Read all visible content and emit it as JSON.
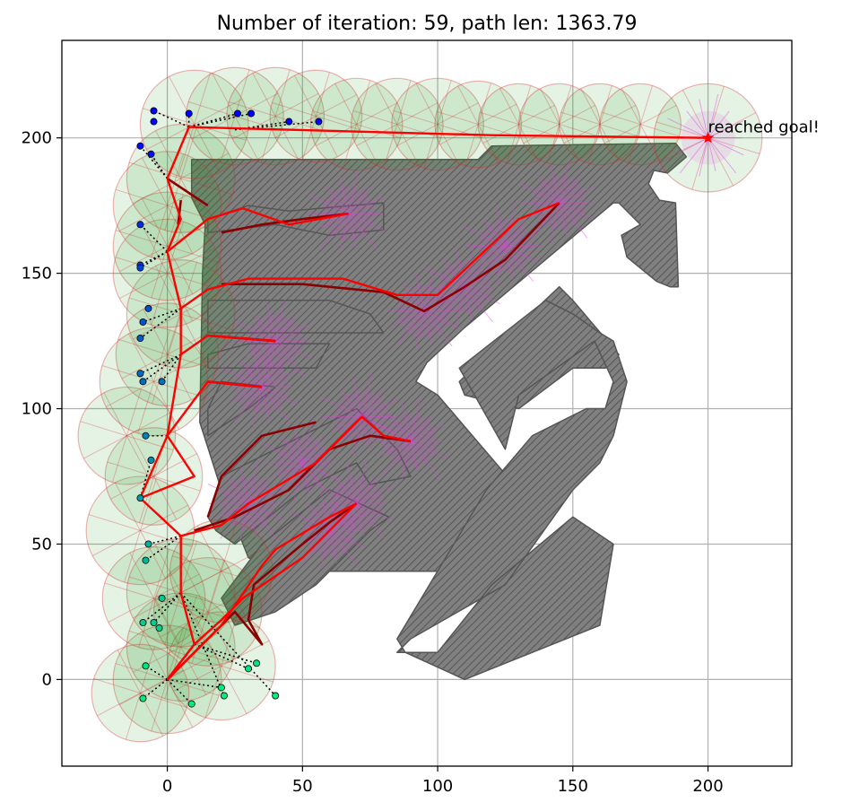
{
  "chart_data": {
    "type": "scatter",
    "title": "Number of iteration: 59, path len: 1363.79",
    "xlabel": "",
    "ylabel": "",
    "xlim": [
      -39,
      231
    ],
    "ylim": [
      -32,
      236
    ],
    "grid": true,
    "x_ticks": [
      0,
      50,
      100,
      150,
      200
    ],
    "y_ticks": [
      0,
      50,
      100,
      150,
      200
    ],
    "x_tick_labels": [
      "0",
      "50",
      "100",
      "150",
      "200"
    ],
    "y_tick_labels": [
      "0",
      "50",
      "100",
      "150",
      "200"
    ],
    "annotation": {
      "text": "reached goal!",
      "x": 200,
      "y": 200
    },
    "start": {
      "x": 0,
      "y": 0
    },
    "goal": {
      "x": 200,
      "y": 200
    },
    "colors": {
      "obstacle": "#808080",
      "obstacle_edge": "#555555",
      "sensor_fill": "#2ca02c",
      "sensor_edge": "#d62728",
      "path_red": "#ff0000",
      "path_dark": "#8b0000",
      "magenta": "#e040e0"
    },
    "obstacles": [
      [
        [
          9,
          192
        ],
        [
          115,
          192
        ],
        [
          120,
          197
        ],
        [
          188,
          198
        ],
        [
          192,
          193
        ],
        [
          185,
          187
        ],
        [
          180,
          188
        ],
        [
          178,
          183
        ],
        [
          182,
          177
        ],
        [
          188,
          176
        ],
        [
          189,
          145
        ],
        [
          186,
          145
        ],
        [
          181,
          147
        ],
        [
          170,
          156
        ],
        [
          168,
          164
        ],
        [
          175,
          168
        ],
        [
          167,
          176
        ],
        [
          165,
          176
        ],
        [
          110,
          130
        ],
        [
          96,
          117
        ],
        [
          92,
          110
        ],
        [
          100,
          105
        ],
        [
          130,
          70
        ],
        [
          100,
          40
        ],
        [
          40,
          40
        ],
        [
          30,
          45
        ],
        [
          20,
          70
        ],
        [
          12,
          95
        ],
        [
          13,
          150
        ],
        [
          14,
          168
        ],
        [
          9,
          178
        ]
      ],
      [
        [
          15,
          170
        ],
        [
          30,
          175
        ],
        [
          45,
          173
        ],
        [
          80,
          176
        ],
        [
          80,
          166
        ],
        [
          60,
          164
        ],
        [
          40,
          168
        ],
        [
          15,
          165
        ]
      ],
      [
        [
          15,
          140
        ],
        [
          60,
          140
        ],
        [
          75,
          135
        ],
        [
          80,
          128
        ],
        [
          15,
          128
        ]
      ],
      [
        [
          15,
          120
        ],
        [
          30,
          124
        ],
        [
          60,
          124
        ],
        [
          55,
          115
        ],
        [
          15,
          115
        ]
      ],
      [
        [
          15,
          100
        ],
        [
          20,
          110
        ],
        [
          40,
          108
        ],
        [
          30,
          100
        ],
        [
          15,
          90
        ]
      ],
      [
        [
          15,
          60
        ],
        [
          20,
          75
        ],
        [
          50,
          90
        ],
        [
          70,
          100
        ],
        [
          85,
          85
        ],
        [
          90,
          75
        ],
        [
          75,
          72
        ],
        [
          70,
          80
        ],
        [
          50,
          70
        ],
        [
          25,
          50
        ],
        [
          18,
          55
        ]
      ],
      [
        [
          20,
          30
        ],
        [
          35,
          50
        ],
        [
          60,
          70
        ],
        [
          82,
          60
        ],
        [
          75,
          55
        ],
        [
          55,
          35
        ],
        [
          40,
          25
        ],
        [
          25,
          20
        ]
      ],
      [
        [
          108,
          110
        ],
        [
          145,
          145
        ],
        [
          150,
          140
        ],
        [
          167,
          120
        ],
        [
          162,
          115
        ],
        [
          150,
          115
        ],
        [
          130,
          100
        ],
        [
          110,
          105
        ]
      ],
      [
        [
          118,
          70
        ],
        [
          135,
          90
        ],
        [
          155,
          100
        ],
        [
          162,
          100
        ],
        [
          165,
          110
        ],
        [
          158,
          125
        ],
        [
          130,
          105
        ],
        [
          125,
          85
        ],
        [
          108,
          115
        ],
        [
          140,
          140
        ],
        [
          150,
          135
        ],
        [
          160,
          128
        ],
        [
          165,
          125
        ],
        [
          170,
          110
        ],
        [
          165,
          90
        ],
        [
          160,
          80
        ],
        [
          150,
          70
        ],
        [
          125,
          35
        ],
        [
          90,
          15
        ],
        [
          85,
          10
        ],
        [
          100,
          10
        ],
        [
          120,
          35
        ],
        [
          150,
          60
        ],
        [
          165,
          50
        ],
        [
          160,
          20
        ],
        [
          110,
          0
        ],
        [
          88,
          10
        ],
        [
          85,
          15
        ]
      ]
    ],
    "sensor_circles": [
      [
        0,
        0,
        20
      ],
      [
        5,
        12,
        20
      ],
      [
        20,
        5,
        20
      ],
      [
        -10,
        -5,
        18
      ],
      [
        -5,
        30,
        19
      ],
      [
        5,
        32,
        20
      ],
      [
        15,
        25,
        20
      ],
      [
        20,
        40,
        19
      ],
      [
        -10,
        55,
        20
      ],
      [
        -5,
        75,
        18
      ],
      [
        -15,
        90,
        18
      ],
      [
        -5,
        110,
        20
      ],
      [
        0,
        120,
        19
      ],
      [
        5,
        135,
        20
      ],
      [
        0,
        150,
        20
      ],
      [
        0,
        160,
        20
      ],
      [
        0,
        175,
        20
      ],
      [
        5,
        185,
        20
      ],
      [
        10,
        205,
        20
      ],
      [
        25,
        208,
        18
      ],
      [
        40,
        208,
        18
      ],
      [
        55,
        208,
        17
      ],
      [
        70,
        205,
        17
      ],
      [
        85,
        205,
        17
      ],
      [
        100,
        205,
        17
      ],
      [
        115,
        205,
        16
      ],
      [
        130,
        205,
        15
      ],
      [
        145,
        205,
        15
      ],
      [
        160,
        205,
        15
      ],
      [
        175,
        205,
        15
      ],
      [
        200,
        200,
        20
      ]
    ],
    "tree_nodes": [
      [
        -5,
        210
      ],
      [
        -5,
        206
      ],
      [
        8,
        209
      ],
      [
        26,
        209
      ],
      [
        31,
        209
      ],
      [
        45,
        206
      ],
      [
        56,
        206
      ],
      [
        -10,
        197
      ],
      [
        -6,
        194
      ],
      [
        -10,
        168
      ],
      [
        -10,
        153
      ],
      [
        -10,
        152
      ],
      [
        -7,
        137
      ],
      [
        -9,
        132
      ],
      [
        -10,
        126
      ],
      [
        -10,
        113
      ],
      [
        -9,
        110
      ],
      [
        -2,
        110
      ],
      [
        -8,
        90
      ],
      [
        -6,
        81
      ],
      [
        -10,
        67
      ],
      [
        -7,
        50
      ],
      [
        -8,
        44
      ],
      [
        -2,
        30
      ],
      [
        -9,
        21
      ],
      [
        -5,
        21
      ],
      [
        -3,
        19
      ],
      [
        -8,
        5
      ],
      [
        -9,
        -7
      ],
      [
        9,
        -9
      ],
      [
        20,
        -3
      ],
      [
        21,
        -6
      ],
      [
        30,
        4
      ],
      [
        33,
        6
      ],
      [
        40,
        -6
      ]
    ],
    "tree_edges": [
      [
        [
          0,
          0
        ],
        [
          -9,
          -7
        ]
      ],
      [
        [
          0,
          0
        ],
        [
          9,
          -9
        ]
      ],
      [
        [
          0,
          0
        ],
        [
          20,
          -3
        ]
      ],
      [
        [
          0,
          0
        ],
        [
          -8,
          5
        ]
      ],
      [
        [
          10,
          13
        ],
        [
          33,
          6
        ]
      ],
      [
        [
          10,
          13
        ],
        [
          30,
          4
        ]
      ],
      [
        [
          5,
          32
        ],
        [
          -9,
          21
        ]
      ],
      [
        [
          5,
          32
        ],
        [
          -5,
          21
        ]
      ],
      [
        [
          5,
          32
        ],
        [
          40,
          -6
        ]
      ],
      [
        [
          5,
          32
        ],
        [
          21,
          -6
        ]
      ],
      [
        [
          5,
          53
        ],
        [
          -7,
          50
        ]
      ],
      [
        [
          5,
          53
        ],
        [
          -8,
          44
        ]
      ],
      [
        [
          -10,
          67
        ],
        [
          -6,
          81
        ]
      ],
      [
        [
          0,
          90
        ],
        [
          -8,
          90
        ]
      ],
      [
        [
          5,
          120
        ],
        [
          -10,
          113
        ]
      ],
      [
        [
          5,
          120
        ],
        [
          -9,
          110
        ]
      ],
      [
        [
          5,
          120
        ],
        [
          -2,
          110
        ]
      ],
      [
        [
          5,
          137
        ],
        [
          -9,
          132
        ]
      ],
      [
        [
          5,
          137
        ],
        [
          -10,
          126
        ]
      ],
      [
        [
          0,
          158
        ],
        [
          -10,
          153
        ]
      ],
      [
        [
          0,
          158
        ],
        [
          -10,
          152
        ]
      ],
      [
        [
          0,
          158
        ],
        [
          -10,
          168
        ]
      ],
      [
        [
          0,
          185
        ],
        [
          -10,
          197
        ]
      ],
      [
        [
          0,
          185
        ],
        [
          -6,
          194
        ]
      ],
      [
        [
          8,
          204
        ],
        [
          -5,
          210
        ]
      ],
      [
        [
          8,
          204
        ],
        [
          8,
          209
        ]
      ],
      [
        [
          8,
          204
        ],
        [
          26,
          209
        ]
      ],
      [
        [
          8,
          204
        ],
        [
          31,
          209
        ]
      ],
      [
        [
          25,
          203
        ],
        [
          45,
          206
        ]
      ],
      [
        [
          25,
          203
        ],
        [
          56,
          206
        ]
      ]
    ],
    "red_paths": [
      [
        [
          0,
          0
        ],
        [
          10,
          13
        ],
        [
          20,
          22
        ],
        [
          28,
          30
        ],
        [
          50,
          45
        ],
        [
          60,
          55
        ],
        [
          70,
          65
        ]
      ],
      [
        [
          0,
          0
        ],
        [
          20,
          20
        ],
        [
          35,
          42
        ],
        [
          40,
          48
        ],
        [
          60,
          60
        ],
        [
          70,
          65
        ]
      ],
      [
        [
          5,
          53
        ],
        [
          20,
          57
        ],
        [
          30,
          65
        ],
        [
          55,
          80
        ],
        [
          72,
          97
        ],
        [
          80,
          90
        ],
        [
          90,
          88
        ]
      ],
      [
        [
          -10,
          67
        ],
        [
          10,
          75
        ],
        [
          0,
          90
        ],
        [
          15,
          110
        ],
        [
          35,
          108
        ]
      ],
      [
        [
          5,
          120
        ],
        [
          15,
          127
        ],
        [
          40,
          125
        ]
      ],
      [
        [
          5,
          137
        ],
        [
          15,
          144
        ],
        [
          30,
          148
        ],
        [
          65,
          148
        ],
        [
          85,
          142
        ],
        [
          100,
          142
        ],
        [
          130,
          170
        ],
        [
          145,
          176
        ]
      ],
      [
        [
          0,
          158
        ],
        [
          15,
          170
        ],
        [
          28,
          174
        ],
        [
          45,
          168
        ],
        [
          67,
          172
        ]
      ],
      [
        [
          0,
          185
        ],
        [
          8,
          204
        ],
        [
          120,
          201
        ],
        [
          200,
          200
        ]
      ],
      [
        [
          0,
          185
        ],
        [
          5,
          170
        ],
        [
          0,
          158
        ],
        [
          5,
          137
        ],
        [
          5,
          120
        ],
        [
          0,
          90
        ],
        [
          -10,
          67
        ],
        [
          5,
          53
        ],
        [
          5,
          32
        ],
        [
          10,
          13
        ],
        [
          0,
          0
        ]
      ]
    ],
    "dark_paths": [
      [
        [
          0,
          0
        ],
        [
          20,
          20
        ],
        [
          25,
          25
        ],
        [
          35,
          13
        ],
        [
          30,
          22
        ],
        [
          32,
          35
        ],
        [
          50,
          50
        ],
        [
          60,
          58
        ],
        [
          70,
          65
        ]
      ],
      [
        [
          10,
          55
        ],
        [
          25,
          60
        ],
        [
          45,
          70
        ],
        [
          60,
          85
        ],
        [
          75,
          90
        ],
        [
          90,
          88
        ]
      ],
      [
        [
          15,
          60
        ],
        [
          20,
          75
        ],
        [
          35,
          90
        ],
        [
          55,
          95
        ]
      ],
      [
        [
          15,
          110
        ],
        [
          35,
          108
        ]
      ],
      [
        [
          15,
          127
        ],
        [
          40,
          125
        ]
      ],
      [
        [
          20,
          146
        ],
        [
          50,
          146
        ],
        [
          80,
          143
        ],
        [
          95,
          136
        ],
        [
          110,
          145
        ],
        [
          125,
          155
        ],
        [
          145,
          176
        ]
      ],
      [
        [
          20,
          165
        ],
        [
          35,
          168
        ],
        [
          50,
          170
        ],
        [
          67,
          172
        ]
      ],
      [
        [
          5,
          177
        ],
        [
          4,
          168
        ]
      ],
      [
        [
          0,
          185
        ],
        [
          15,
          175
        ]
      ]
    ],
    "magenta_fans": [
      [
        90,
        88
      ],
      [
        72,
        97
      ],
      [
        70,
        65
      ],
      [
        60,
        55
      ],
      [
        40,
        125
      ],
      [
        35,
        108
      ],
      [
        95,
        136
      ],
      [
        145,
        176
      ],
      [
        67,
        172
      ],
      [
        200,
        200
      ],
      [
        50,
        80
      ],
      [
        30,
        65
      ],
      [
        110,
        145
      ],
      [
        125,
        160
      ]
    ]
  }
}
